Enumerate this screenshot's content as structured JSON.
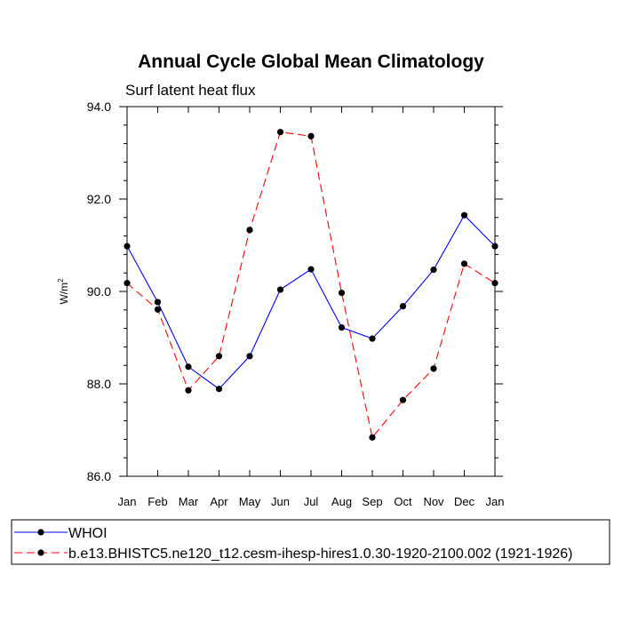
{
  "chart_data": {
    "type": "line",
    "title": "Annual Cycle Global Mean Climatology",
    "subtitle": "Surf latent heat flux",
    "xlabel": "",
    "ylabel": "W/m",
    "ylabel_superscript": "2",
    "categories": [
      "Jan",
      "Feb",
      "Mar",
      "Apr",
      "May",
      "Jun",
      "Jul",
      "Aug",
      "Sep",
      "Oct",
      "Nov",
      "Dec",
      "Jan"
    ],
    "ylim": [
      86.0,
      94.0
    ],
    "yticks": [
      "86.0",
      "88.0",
      "90.0",
      "92.0",
      "94.0"
    ],
    "series": [
      {
        "name": "WHOI",
        "color": "#0000ff",
        "dash": "solid",
        "values": [
          90.98,
          89.77,
          88.37,
          87.89,
          88.6,
          90.04,
          90.48,
          89.22,
          88.98,
          89.68,
          90.47,
          91.65,
          90.98
        ]
      },
      {
        "name": "b.e13.BHISTC5.ne120_t12.cesm-ihesp-hires1.0.30-1920-2100.002 (1921-1926)",
        "color": "#ff0000",
        "dash": "dashed",
        "values": [
          90.18,
          89.61,
          87.86,
          88.6,
          91.33,
          93.45,
          93.36,
          89.97,
          86.84,
          87.65,
          88.33,
          90.6,
          90.18
        ]
      }
    ],
    "legend_position": "bottom"
  }
}
